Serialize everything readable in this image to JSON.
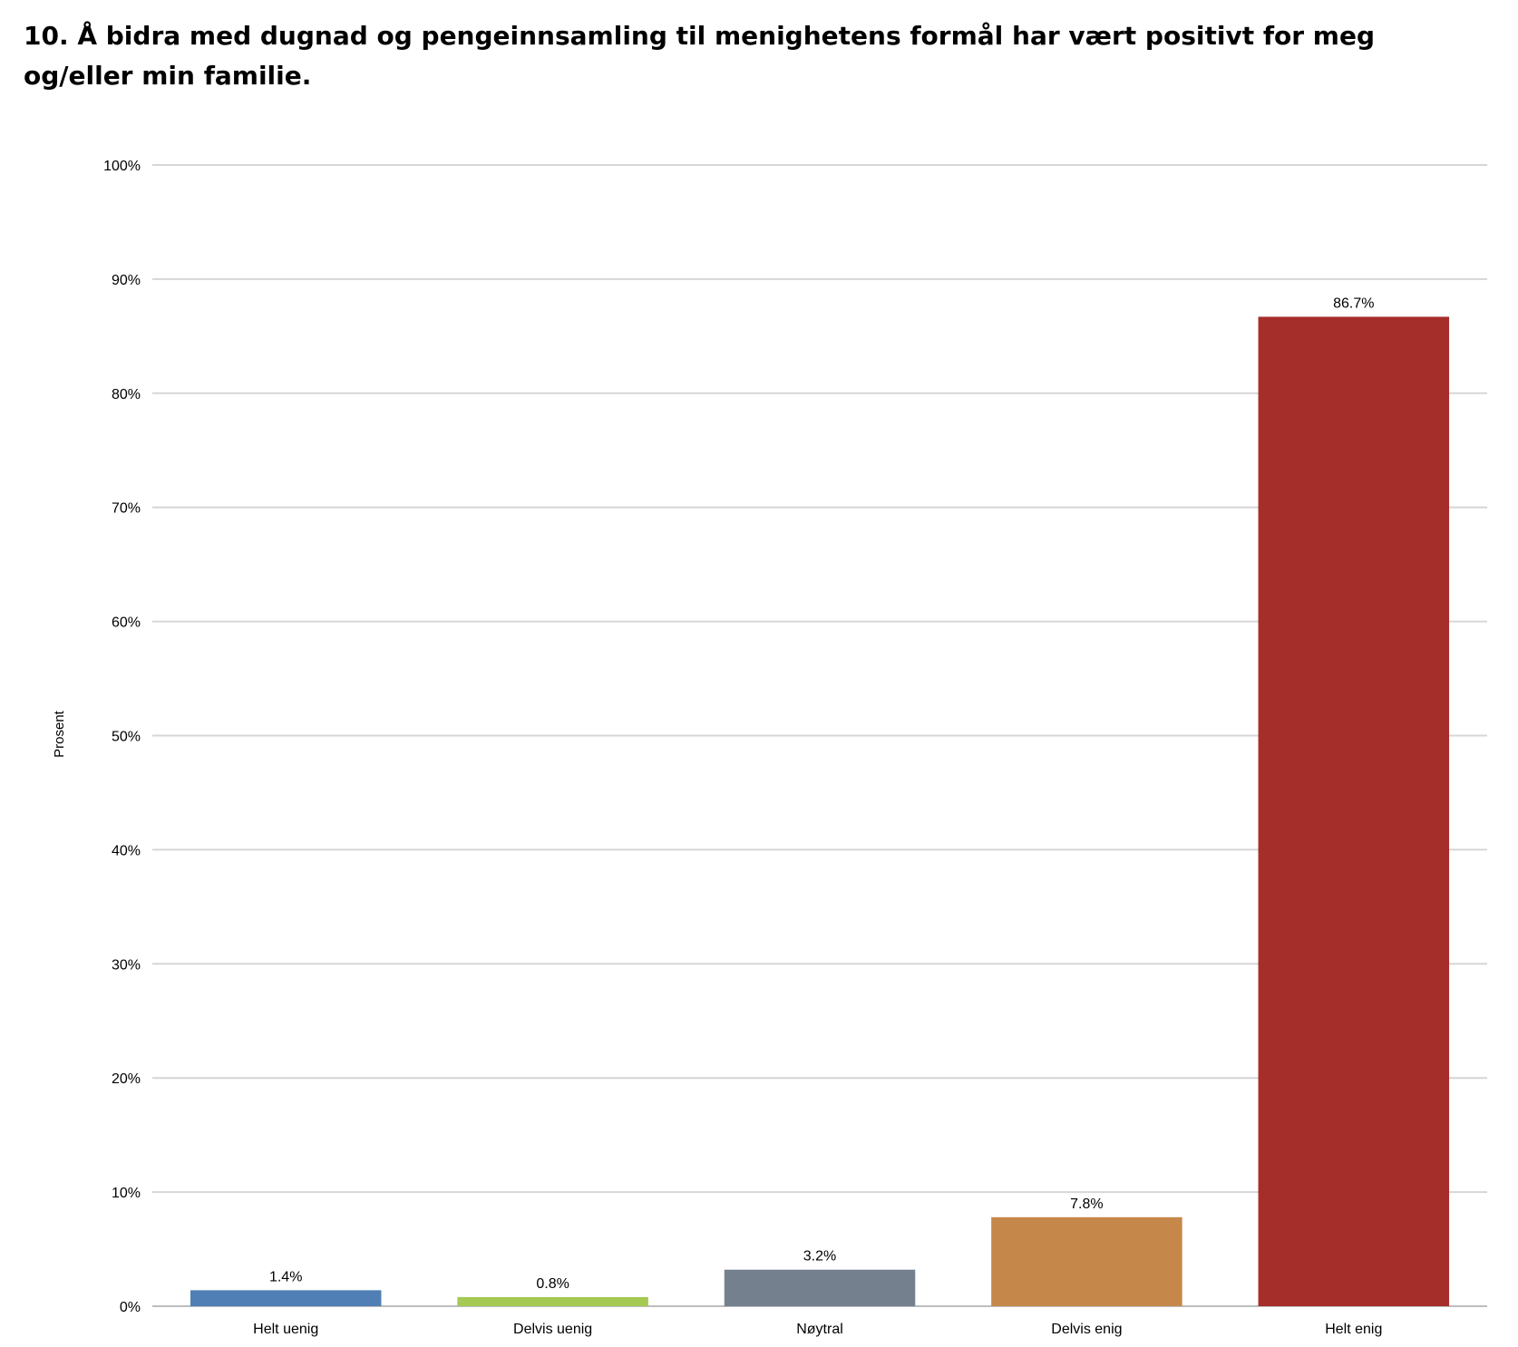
{
  "title": "10. Å bidra med dugnad og pengeinnsamling til menighetens formål har vært positivt for meg og/eller min familie.",
  "chart_data": {
    "type": "bar",
    "title": "10. Å bidra med dugnad og pengeinnsamling til menighetens formål har vært positivt for meg og/eller min familie.",
    "xlabel": "",
    "ylabel": "Prosent",
    "ylim": [
      0,
      100
    ],
    "yticks": [
      "0%",
      "10%",
      "20%",
      "30%",
      "40%",
      "50%",
      "60%",
      "70%",
      "80%",
      "90%",
      "100%"
    ],
    "categories": [
      "Helt uenig",
      "Delvis uenig",
      "Nøytral",
      "Delvis enig",
      "Helt enig"
    ],
    "values": [
      1.4,
      0.8,
      3.2,
      7.8,
      86.7
    ],
    "data_labels": [
      "1.4%",
      "0.8%",
      "3.2%",
      "7.8%",
      "86.7%"
    ],
    "colors": [
      "#4F7FB5",
      "#A5C953",
      "#74808E",
      "#C5884A",
      "#A52E2A"
    ],
    "grid": true,
    "legend": "none"
  }
}
